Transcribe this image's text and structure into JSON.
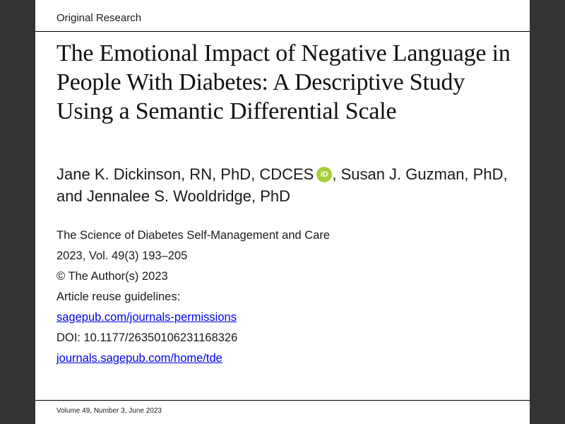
{
  "header": {
    "section_label": "Original Research"
  },
  "article": {
    "title": "The Emotional Impact of Negative Language in People With Diabetes: A Descriptive Study Using a Semantic Differential Scale",
    "authors_part1": "Jane K. Dickinson, RN, PhD, CDCES",
    "orcid_icon": "iD",
    "authors_part2": ", Susan J. Guzman, PhD, and Jennalee S. Wooldridge, PhD"
  },
  "meta": {
    "journal": "The Science of Diabetes Self-Management and Care",
    "citation": "2023, Vol. 49(3) 193–205",
    "copyright": "© The Author(s) 2023",
    "reuse_label": "Article reuse guidelines:",
    "reuse_link": "sagepub.com/journals-permissions",
    "doi": "DOI: 10.1177/26350106231168326",
    "journal_link": "journals.sagepub.com/home/tde"
  },
  "footer": {
    "issue": "Volume 49, Number 3, June 2023"
  },
  "colors": {
    "background": "#333333",
    "page": "#ffffff",
    "orcid": "#a6ce39",
    "link": "#0000ee"
  }
}
